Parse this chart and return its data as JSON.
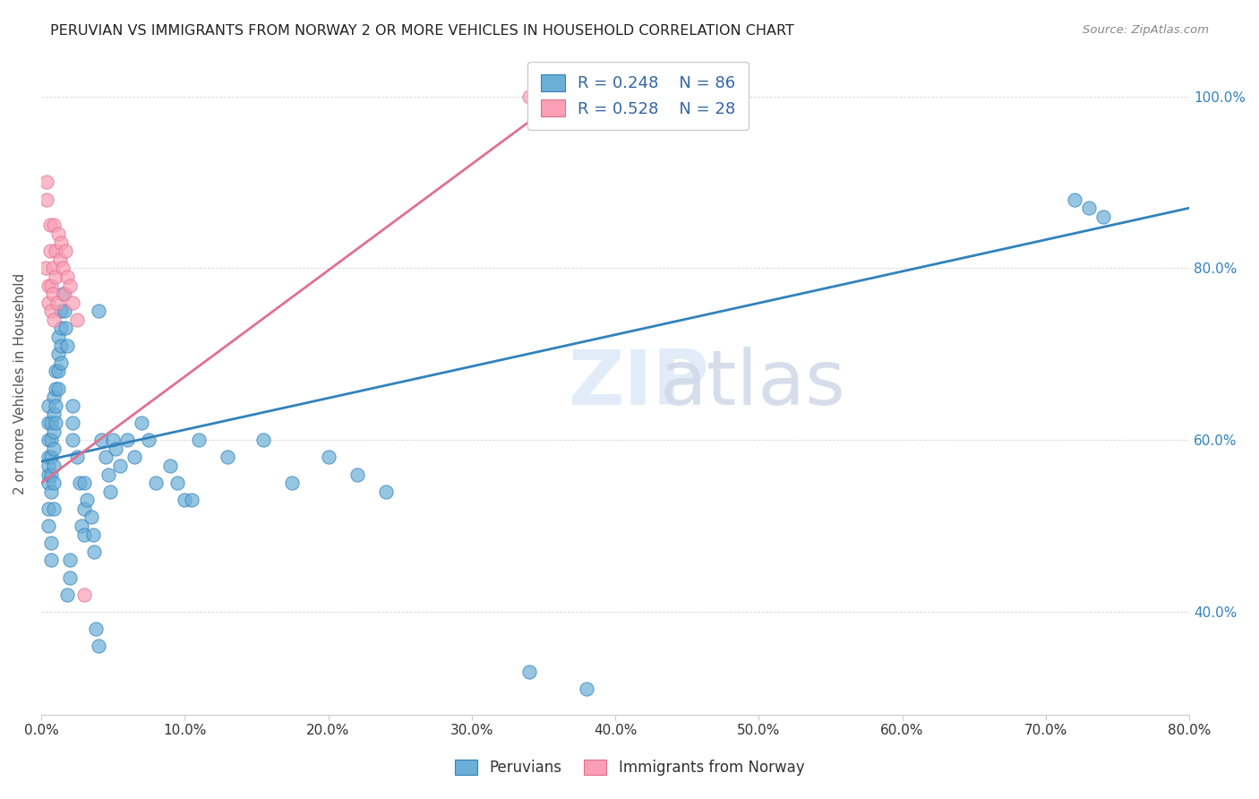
{
  "title": "PERUVIAN VS IMMIGRANTS FROM NORWAY 2 OR MORE VEHICLES IN HOUSEHOLD CORRELATION CHART",
  "source": "Source: ZipAtlas.com",
  "xlabel_bottom": "",
  "ylabel": "2 or more Vehicles in Household",
  "x_label_bottom_ticks": [
    "0.0%",
    "10.0%",
    "20.0%",
    "30.0%",
    "40.0%",
    "50.0%",
    "60.0%",
    "70.0%",
    "80.0%"
  ],
  "y_label_right_ticks": [
    "40.0%",
    "60.0%",
    "80.0%",
    "100.0%"
  ],
  "xlim": [
    0.0,
    0.8
  ],
  "ylim": [
    0.28,
    1.05
  ],
  "legend_r1": "R = 0.248",
  "legend_n1": "N = 86",
  "legend_r2": "R = 0.528",
  "legend_n2": "N = 28",
  "color_blue": "#6baed6",
  "color_pink": "#fa9fb5",
  "color_blue_line": "#3182bd",
  "color_pink_line": "#e07090",
  "color_legend_r": "#3465a4",
  "watermark": "ZIPatlas",
  "blue_x": [
    0.005,
    0.005,
    0.005,
    0.005,
    0.005,
    0.005,
    0.005,
    0.005,
    0.005,
    0.007,
    0.007,
    0.007,
    0.007,
    0.007,
    0.007,
    0.007,
    0.009,
    0.009,
    0.009,
    0.009,
    0.009,
    0.009,
    0.009,
    0.01,
    0.01,
    0.01,
    0.01,
    0.012,
    0.012,
    0.012,
    0.012,
    0.014,
    0.014,
    0.014,
    0.014,
    0.015,
    0.016,
    0.017,
    0.018,
    0.018,
    0.02,
    0.02,
    0.022,
    0.022,
    0.022,
    0.025,
    0.027,
    0.028,
    0.03,
    0.03,
    0.03,
    0.032,
    0.035,
    0.036,
    0.037,
    0.038,
    0.04,
    0.04,
    0.042,
    0.045,
    0.047,
    0.048,
    0.05,
    0.052,
    0.055,
    0.06,
    0.065,
    0.07,
    0.075,
    0.08,
    0.09,
    0.095,
    0.1,
    0.105,
    0.11,
    0.13,
    0.155,
    0.175,
    0.2,
    0.22,
    0.24,
    0.34,
    0.38,
    0.72,
    0.73,
    0.74
  ],
  "blue_y": [
    0.56,
    0.58,
    0.6,
    0.62,
    0.64,
    0.57,
    0.55,
    0.52,
    0.5,
    0.62,
    0.6,
    0.58,
    0.56,
    0.54,
    0.48,
    0.46,
    0.65,
    0.63,
    0.61,
    0.59,
    0.57,
    0.55,
    0.52,
    0.68,
    0.66,
    0.64,
    0.62,
    0.72,
    0.7,
    0.68,
    0.66,
    0.75,
    0.73,
    0.71,
    0.69,
    0.77,
    0.75,
    0.73,
    0.71,
    0.42,
    0.44,
    0.46,
    0.6,
    0.62,
    0.64,
    0.58,
    0.55,
    0.5,
    0.55,
    0.52,
    0.49,
    0.53,
    0.51,
    0.49,
    0.47,
    0.38,
    0.36,
    0.75,
    0.6,
    0.58,
    0.56,
    0.54,
    0.6,
    0.59,
    0.57,
    0.6,
    0.58,
    0.62,
    0.6,
    0.55,
    0.57,
    0.55,
    0.53,
    0.53,
    0.6,
    0.58,
    0.6,
    0.55,
    0.58,
    0.56,
    0.54,
    0.33,
    0.31,
    0.88,
    0.87,
    0.86
  ],
  "pink_x": [
    0.003,
    0.004,
    0.004,
    0.005,
    0.005,
    0.006,
    0.006,
    0.007,
    0.007,
    0.008,
    0.008,
    0.009,
    0.009,
    0.01,
    0.01,
    0.011,
    0.012,
    0.013,
    0.014,
    0.015,
    0.016,
    0.017,
    0.018,
    0.02,
    0.022,
    0.025,
    0.03,
    0.34
  ],
  "pink_y": [
    0.8,
    0.88,
    0.9,
    0.78,
    0.76,
    0.85,
    0.82,
    0.78,
    0.75,
    0.8,
    0.77,
    0.74,
    0.85,
    0.82,
    0.79,
    0.76,
    0.84,
    0.81,
    0.83,
    0.8,
    0.77,
    0.82,
    0.79,
    0.78,
    0.76,
    0.74,
    0.42,
    1.0
  ],
  "blue_trendline_x": [
    0.0,
    0.8
  ],
  "blue_trendline_y": [
    0.575,
    0.87
  ],
  "pink_trendline_x": [
    0.0,
    0.38
  ],
  "pink_trendline_y": [
    0.55,
    1.02
  ]
}
